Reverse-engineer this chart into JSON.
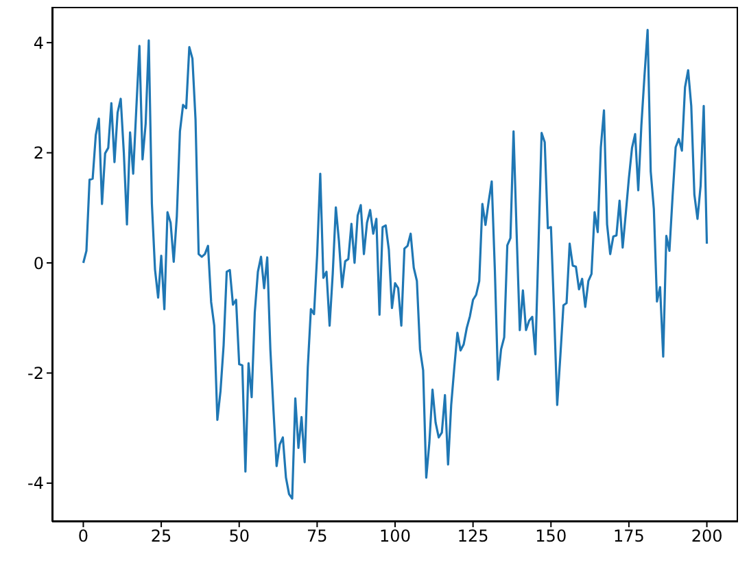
{
  "chart_data": {
    "type": "line",
    "x": [
      0,
      1,
      2,
      3,
      4,
      5,
      6,
      7,
      8,
      9,
      10,
      11,
      12,
      13,
      14,
      15,
      16,
      17,
      18,
      19,
      20,
      21,
      22,
      23,
      24,
      25,
      26,
      27,
      28,
      29,
      30,
      31,
      32,
      33,
      34,
      35,
      36,
      37,
      38,
      39,
      40,
      41,
      42,
      43,
      44,
      45,
      46,
      47,
      48,
      49,
      50,
      51,
      52,
      53,
      54,
      55,
      56,
      57,
      58,
      59,
      60,
      61,
      62,
      63,
      64,
      65,
      66,
      67,
      68,
      69,
      70,
      71,
      72,
      73,
      74,
      75,
      76,
      77,
      78,
      79,
      80,
      81,
      82,
      83,
      84,
      85,
      86,
      87,
      88,
      89,
      90,
      91,
      92,
      93,
      94,
      95,
      96,
      97,
      98,
      99,
      100,
      101,
      102,
      103,
      104,
      105,
      106,
      107,
      108,
      109,
      110,
      111,
      112,
      113,
      114,
      115,
      116,
      117,
      118,
      119,
      120,
      121,
      122,
      123,
      124,
      125,
      126,
      127,
      128,
      129,
      130,
      131,
      132,
      133,
      134,
      135,
      136,
      137,
      138,
      139,
      140,
      141,
      142,
      143,
      144,
      145,
      146,
      147,
      148,
      149,
      150,
      151,
      152,
      153,
      154,
      155,
      156,
      157,
      158,
      159,
      160,
      161,
      162,
      163,
      164,
      165,
      166,
      167,
      168,
      169,
      170,
      171,
      172,
      173,
      174,
      175,
      176,
      177,
      178,
      179,
      180,
      181,
      182,
      183,
      184,
      185,
      186,
      187,
      188,
      189,
      190,
      191,
      192,
      193,
      194,
      195,
      196,
      197,
      198,
      199,
      200
    ],
    "series": [
      {
        "color": "#1f77b4",
        "values": [
          0.0,
          0.22,
          1.51,
          1.53,
          2.32,
          2.62,
          1.07,
          1.99,
          2.09,
          2.9,
          1.83,
          2.73,
          2.98,
          2.0,
          0.7,
          2.37,
          1.62,
          2.8,
          3.94,
          1.88,
          2.53,
          4.04,
          1.07,
          -0.12,
          -0.63,
          0.13,
          -0.84,
          0.92,
          0.73,
          0.02,
          0.85,
          2.39,
          2.87,
          2.81,
          3.92,
          3.71,
          2.6,
          0.16,
          0.11,
          0.16,
          0.31,
          -0.71,
          -1.14,
          -2.85,
          -2.33,
          -1.5,
          -0.16,
          -0.13,
          -0.76,
          -0.67,
          -1.84,
          -1.86,
          -3.79,
          -1.82,
          -2.44,
          -0.9,
          -0.16,
          0.11,
          -0.46,
          0.1,
          -1.57,
          -2.68,
          -3.69,
          -3.3,
          -3.17,
          -3.9,
          -4.2,
          -4.28,
          -2.46,
          -3.36,
          -2.8,
          -3.62,
          -1.9,
          -0.84,
          -0.93,
          0.14,
          1.62,
          -0.27,
          -0.16,
          -1.14,
          -0.2,
          1.01,
          0.39,
          -0.44,
          0.03,
          0.07,
          0.71,
          0.0,
          0.86,
          1.05,
          0.16,
          0.73,
          0.96,
          0.53,
          0.8,
          -0.94,
          0.65,
          0.68,
          0.24,
          -0.82,
          -0.37,
          -0.46,
          -1.14,
          0.26,
          0.31,
          0.53,
          -0.09,
          -0.33,
          -1.57,
          -1.95,
          -3.9,
          -3.26,
          -2.3,
          -2.9,
          -3.17,
          -3.08,
          -2.4,
          -3.66,
          -2.58,
          -1.9,
          -1.27,
          -1.59,
          -1.48,
          -1.18,
          -0.97,
          -0.67,
          -0.58,
          -0.33,
          1.07,
          0.69,
          1.11,
          1.48,
          -0.12,
          -2.12,
          -1.57,
          -1.35,
          0.32,
          0.45,
          2.39,
          0.52,
          -1.22,
          -0.5,
          -1.22,
          -1.05,
          -0.98,
          -1.66,
          0.31,
          2.36,
          2.19,
          0.63,
          0.65,
          -0.88,
          -2.58,
          -1.7,
          -0.77,
          -0.73,
          0.35,
          -0.05,
          -0.07,
          -0.48,
          -0.29,
          -0.8,
          -0.33,
          -0.2,
          0.92,
          0.56,
          2.1,
          2.77,
          0.7,
          0.16,
          0.48,
          0.5,
          1.13,
          0.28,
          0.9,
          1.54,
          2.09,
          2.34,
          1.32,
          2.5,
          3.4,
          4.23,
          1.66,
          0.98,
          -0.7,
          -0.44,
          -1.7,
          0.49,
          0.22,
          1.2,
          2.1,
          2.25,
          2.04,
          3.19,
          3.5,
          2.85,
          1.24,
          0.8,
          1.4,
          2.85,
          0.35
        ]
      }
    ],
    "xlim": [
      -10,
      210
    ],
    "xticks": [
      0,
      25,
      50,
      75,
      100,
      125,
      150,
      175,
      200
    ],
    "ylim": [
      -4.7,
      4.65
    ],
    "yticks": [
      -4,
      -2,
      0,
      2,
      4
    ],
    "grid": false,
    "marker": "none",
    "line_style": "solid"
  }
}
